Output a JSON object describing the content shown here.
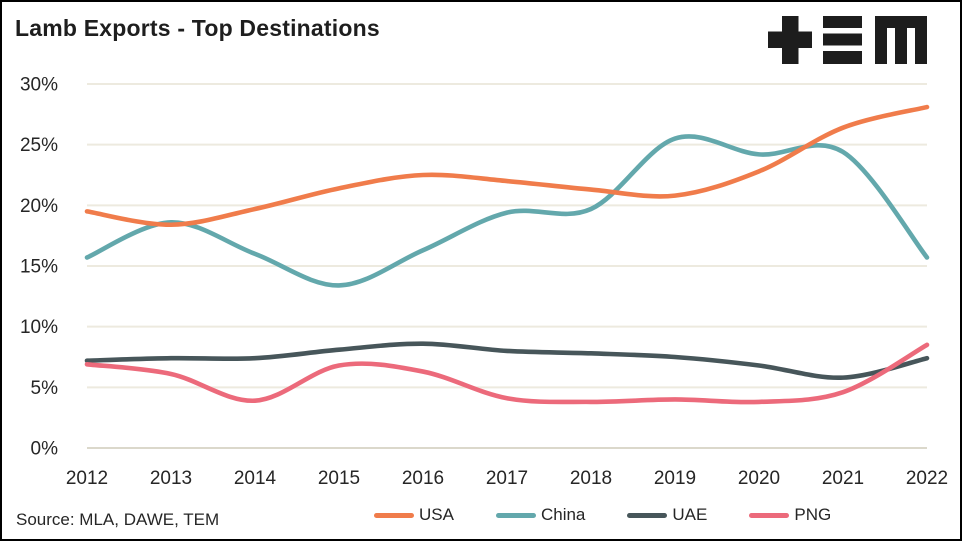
{
  "header": {
    "title": "Lamb Exports - Top Destinations",
    "logo": "tem-logo"
  },
  "footer": {
    "source": "Source: MLA, DAWE, TEM"
  },
  "colors": {
    "usa": "#F07C4B",
    "china": "#63A8AC",
    "uae": "#47565A",
    "png": "#EC6A7B",
    "gridline": "#EDEADF",
    "zero_line": "#DBD8CB",
    "text": "#262626",
    "logo": "#1d1d1d",
    "background": "#FFFFFF",
    "border": "#000000"
  },
  "chart_data": {
    "type": "line",
    "title": "Lamb Exports - Top Destinations",
    "xlabel": "",
    "ylabel": "",
    "categories": [
      "2012",
      "2013",
      "2014",
      "2015",
      "2016",
      "2017",
      "2018",
      "2019",
      "2020",
      "2021",
      "2022"
    ],
    "series": [
      {
        "name": "USA",
        "color": "#F07C4B",
        "values": [
          19.5,
          18.4,
          19.7,
          21.4,
          22.5,
          22.0,
          21.3,
          20.8,
          22.8,
          26.4,
          28.1
        ]
      },
      {
        "name": "China",
        "color": "#63A8AC",
        "values": [
          15.7,
          18.6,
          16.0,
          13.4,
          16.3,
          19.4,
          19.7,
          25.5,
          24.2,
          24.4,
          15.7
        ]
      },
      {
        "name": "UAE",
        "color": "#47565A",
        "values": [
          7.2,
          7.4,
          7.4,
          8.1,
          8.6,
          8.0,
          7.8,
          7.5,
          6.8,
          5.8,
          7.4
        ]
      },
      {
        "name": "PNG",
        "color": "#EC6A7B",
        "values": [
          6.9,
          6.1,
          3.9,
          6.8,
          6.3,
          4.1,
          3.8,
          4.0,
          3.8,
          4.6,
          8.5
        ]
      }
    ],
    "ylim": [
      0,
      30
    ],
    "y_ticks": [
      "0%",
      "5%",
      "10%",
      "15%",
      "20%",
      "25%",
      "30%"
    ],
    "y_tick_values": [
      0,
      5,
      10,
      15,
      20,
      25,
      30
    ],
    "grid": "horizontal",
    "smoothed": true,
    "legend_position": "bottom"
  }
}
